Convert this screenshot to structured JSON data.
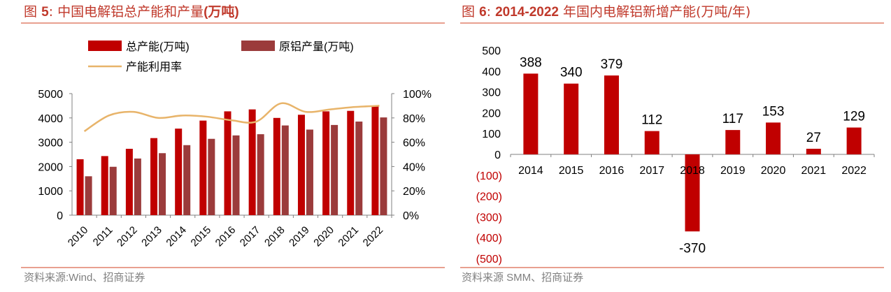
{
  "left": {
    "title_prefix": "图",
    "title_number": "5",
    "title_colon": ":",
    "title_text": "中国电解铝总产能和产量",
    "title_unit": "(万吨)",
    "source": "资料来源:Wind、招商证券"
  },
  "right": {
    "title_prefix": "图",
    "title_number": "6",
    "title_colon": ":",
    "title_bold": "2014-2022",
    "title_text": "年国内电解铝新增产能(万吨/年)",
    "source": "资料来源 SMM、招商证券"
  },
  "colors": {
    "capacity": "#c00000",
    "production": "#9b3b3b",
    "utilization": "#e8b46a",
    "negative_tick": "#c00000",
    "title": "#c0392b"
  },
  "chart_data": [
    {
      "type": "bar",
      "title": "中国电解铝总产能和产量(万吨)",
      "categories": [
        "2010",
        "2011",
        "2012",
        "2013",
        "2014",
        "2015",
        "2016",
        "2017",
        "2018",
        "2019",
        "2020",
        "2021",
        "2022"
      ],
      "series": [
        {
          "name": "总产能(万吨)",
          "kind": "bar",
          "axis": "left",
          "values": [
            2300,
            2430,
            2730,
            3170,
            3560,
            3890,
            4270,
            4350,
            4000,
            4130,
            4270,
            4290,
            4480
          ]
        },
        {
          "name": "原铝产量(万吨)",
          "kind": "bar",
          "axis": "left",
          "values": [
            1600,
            1990,
            2330,
            2550,
            2880,
            3140,
            3280,
            3330,
            3690,
            3520,
            3710,
            3850,
            4020
          ]
        },
        {
          "name": "产能利用率",
          "kind": "line",
          "axis": "right",
          "values": [
            69,
            82,
            85,
            80,
            82,
            81,
            78,
            77,
            92,
            85,
            87,
            89,
            90
          ]
        }
      ],
      "ylim": [
        0,
        5000
      ],
      "yticks": [
        0,
        1000,
        2000,
        3000,
        4000,
        5000
      ],
      "y2lim": [
        0,
        100
      ],
      "y2ticks": [
        "0%",
        "20%",
        "40%",
        "60%",
        "80%",
        "100%"
      ],
      "legend_position": "top-left"
    },
    {
      "type": "bar",
      "title": "2014-2022年国内电解铝新增产能(万吨/年)",
      "categories": [
        "2014",
        "2015",
        "2016",
        "2017",
        "2018",
        "2019",
        "2020",
        "2021",
        "2022"
      ],
      "values": [
        388,
        340,
        379,
        112,
        -370,
        117,
        153,
        27,
        129
      ],
      "data_labels": [
        "388",
        "340",
        "379",
        "112",
        "-370",
        "117",
        "153",
        "27",
        "129"
      ],
      "ylim": [
        -500,
        500
      ],
      "yticks": [
        "(500)",
        "(400)",
        "(300)",
        "(200)",
        "(100)",
        "0",
        "100",
        "200",
        "300",
        "400",
        "500"
      ]
    }
  ]
}
